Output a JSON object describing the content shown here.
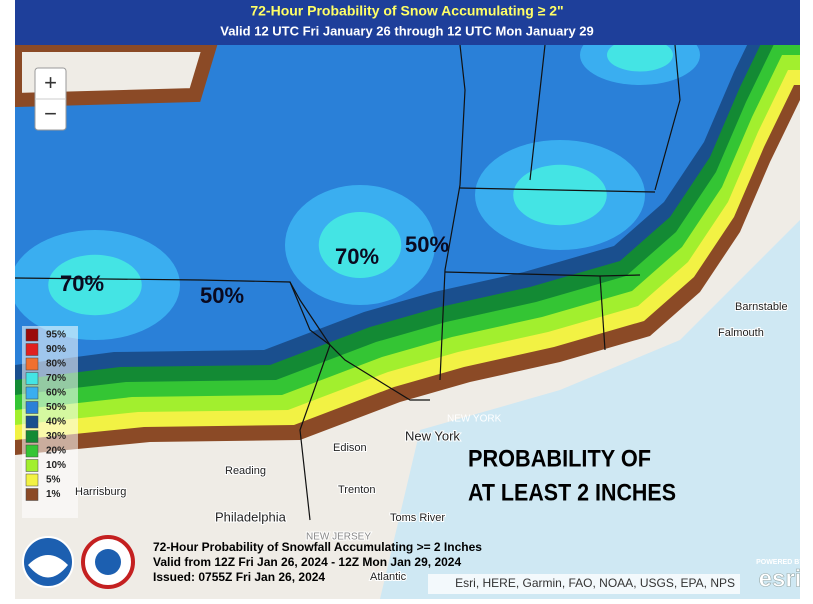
{
  "header": {
    "title": "72-Hour Probability of Snow Accumulating ≥ 2\"",
    "subtitle": "Valid 12 UTC Fri January 26 through 12 UTC Mon January 29"
  },
  "zoom": {
    "in": "+",
    "out": "−"
  },
  "legend": {
    "items": [
      {
        "label": "95%",
        "color": "#9b0a0a"
      },
      {
        "label": "90%",
        "color": "#e02020"
      },
      {
        "label": "80%",
        "color": "#f07030"
      },
      {
        "label": "70%",
        "color": "#44e4e4"
      },
      {
        "label": "60%",
        "color": "#3aaef0"
      },
      {
        "label": "50%",
        "color": "#2a80d8"
      },
      {
        "label": "40%",
        "color": "#1a4f8e"
      },
      {
        "label": "30%",
        "color": "#138a34"
      },
      {
        "label": "20%",
        "color": "#34c534"
      },
      {
        "label": "10%",
        "color": "#a2ef2e"
      },
      {
        "label": "5%",
        "color": "#f2f244"
      },
      {
        "label": "1%",
        "color": "#8b4a26"
      }
    ]
  },
  "contour_labels": [
    "70%",
    "50%",
    "70%",
    "50%"
  ],
  "places": [
    "New York",
    "NEW YORK",
    "Edison",
    "Reading",
    "Harrisburg",
    "Trenton",
    "Philadelphia",
    "NEW JERSEY",
    "Toms River",
    "Barnstable",
    "Falmouth",
    "Atlantic"
  ],
  "annotation": [
    "PROBABILITY OF",
    "AT LEAST 2 INCHES"
  ],
  "info": {
    "lines": [
      "72-Hour Probability of Snowfall Accumulating >= 2 Inches",
      "Valid from 12Z Fri Jan 26, 2024 - 12Z Mon Jan 29, 2024",
      "Issued: 0755Z Fri Jan 26, 2024"
    ]
  },
  "attribution": "Esri, HERE, Garmin, FAO, NOAA, USGS, EPA, NPS",
  "esri": {
    "powered": "POWERED BY",
    "logo": "esri"
  }
}
